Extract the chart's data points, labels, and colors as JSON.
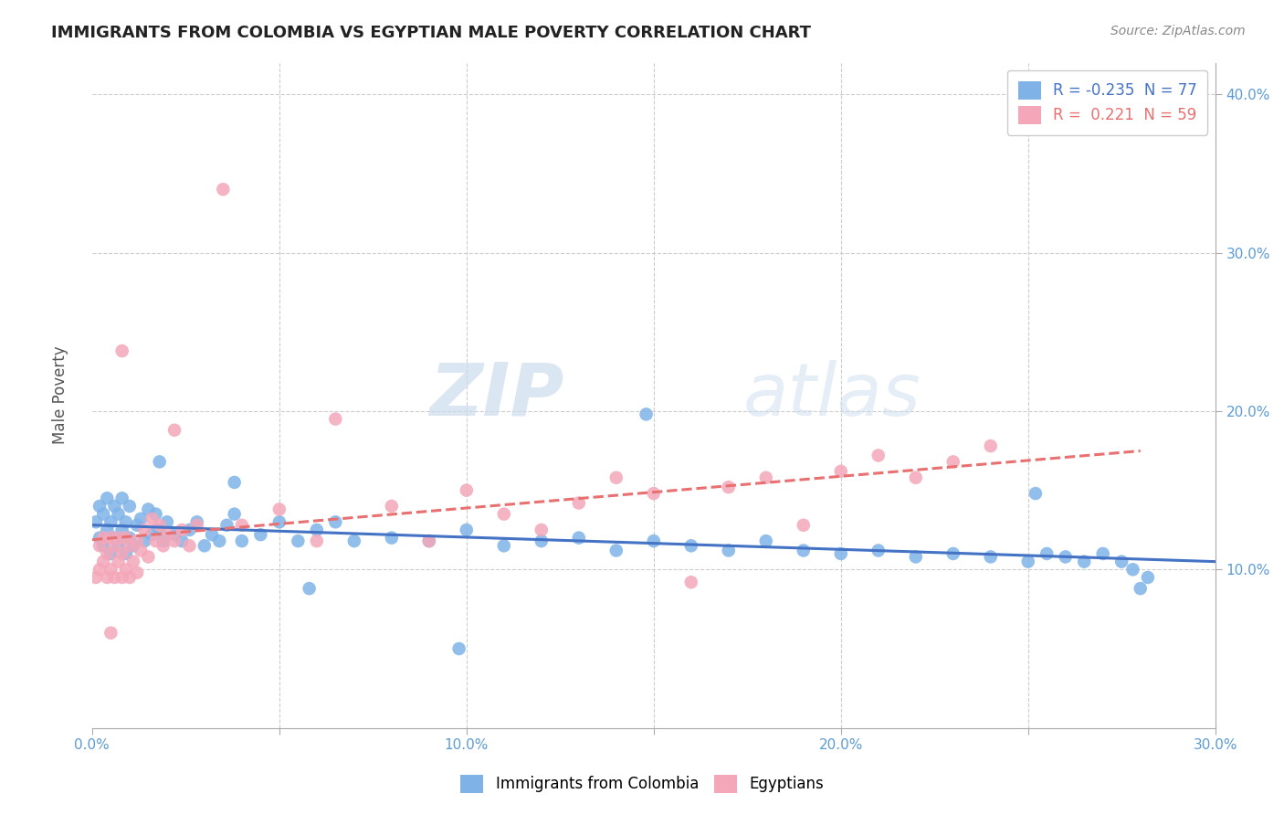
{
  "title": "IMMIGRANTS FROM COLOMBIA VS EGYPTIAN MALE POVERTY CORRELATION CHART",
  "source": "Source: ZipAtlas.com",
  "ylabel": "Male Poverty",
  "xlim": [
    0.0,
    0.3
  ],
  "ylim": [
    0.0,
    0.42
  ],
  "blue_R": -0.235,
  "blue_N": 77,
  "pink_R": 0.221,
  "pink_N": 59,
  "blue_color": "#7fb3e8",
  "pink_color": "#f4a7b9",
  "blue_line_color": "#4472c4",
  "pink_line_color": "#e87070",
  "watermark_zip": "ZIP",
  "watermark_atlas": "atlas",
  "legend_label_blue": "Immigrants from Colombia",
  "legend_label_pink": "Egyptians",
  "blue_x": [
    0.001,
    0.002,
    0.002,
    0.003,
    0.003,
    0.004,
    0.004,
    0.005,
    0.005,
    0.006,
    0.006,
    0.007,
    0.007,
    0.008,
    0.008,
    0.009,
    0.009,
    0.01,
    0.01,
    0.011,
    0.012,
    0.013,
    0.014,
    0.015,
    0.016,
    0.017,
    0.018,
    0.019,
    0.02,
    0.022,
    0.024,
    0.026,
    0.028,
    0.03,
    0.032,
    0.034,
    0.036,
    0.038,
    0.04,
    0.045,
    0.05,
    0.055,
    0.06,
    0.065,
    0.07,
    0.08,
    0.09,
    0.1,
    0.11,
    0.12,
    0.13,
    0.14,
    0.15,
    0.16,
    0.17,
    0.18,
    0.19,
    0.2,
    0.21,
    0.22,
    0.23,
    0.24,
    0.25,
    0.255,
    0.26,
    0.265,
    0.27,
    0.275,
    0.278,
    0.28,
    0.282,
    0.252,
    0.148,
    0.098,
    0.058,
    0.038,
    0.018
  ],
  "blue_y": [
    0.13,
    0.12,
    0.14,
    0.115,
    0.135,
    0.125,
    0.145,
    0.11,
    0.13,
    0.12,
    0.14,
    0.115,
    0.135,
    0.125,
    0.145,
    0.11,
    0.13,
    0.12,
    0.14,
    0.115,
    0.128,
    0.132,
    0.118,
    0.138,
    0.122,
    0.135,
    0.125,
    0.118,
    0.13,
    0.122,
    0.118,
    0.125,
    0.13,
    0.115,
    0.122,
    0.118,
    0.128,
    0.135,
    0.118,
    0.122,
    0.13,
    0.118,
    0.125,
    0.13,
    0.118,
    0.12,
    0.118,
    0.125,
    0.115,
    0.118,
    0.12,
    0.112,
    0.118,
    0.115,
    0.112,
    0.118,
    0.112,
    0.11,
    0.112,
    0.108,
    0.11,
    0.108,
    0.105,
    0.11,
    0.108,
    0.105,
    0.11,
    0.105,
    0.1,
    0.088,
    0.095,
    0.148,
    0.198,
    0.05,
    0.088,
    0.155,
    0.168
  ],
  "pink_x": [
    0.001,
    0.002,
    0.002,
    0.003,
    0.003,
    0.004,
    0.004,
    0.005,
    0.005,
    0.006,
    0.006,
    0.007,
    0.007,
    0.008,
    0.008,
    0.009,
    0.009,
    0.01,
    0.01,
    0.011,
    0.012,
    0.013,
    0.014,
    0.015,
    0.016,
    0.017,
    0.018,
    0.019,
    0.02,
    0.022,
    0.024,
    0.026,
    0.028,
    0.035,
    0.04,
    0.05,
    0.06,
    0.065,
    0.08,
    0.09,
    0.1,
    0.11,
    0.12,
    0.13,
    0.14,
    0.15,
    0.16,
    0.17,
    0.18,
    0.19,
    0.2,
    0.21,
    0.22,
    0.23,
    0.24,
    0.008,
    0.022,
    0.012,
    0.005
  ],
  "pink_y": [
    0.095,
    0.1,
    0.115,
    0.105,
    0.12,
    0.095,
    0.11,
    0.1,
    0.12,
    0.095,
    0.115,
    0.105,
    0.12,
    0.095,
    0.11,
    0.1,
    0.12,
    0.095,
    0.115,
    0.105,
    0.118,
    0.112,
    0.125,
    0.108,
    0.132,
    0.118,
    0.128,
    0.115,
    0.122,
    0.118,
    0.125,
    0.115,
    0.128,
    0.34,
    0.128,
    0.138,
    0.118,
    0.195,
    0.14,
    0.118,
    0.15,
    0.135,
    0.125,
    0.142,
    0.158,
    0.148,
    0.092,
    0.152,
    0.158,
    0.128,
    0.162,
    0.172,
    0.158,
    0.168,
    0.178,
    0.238,
    0.188,
    0.098,
    0.06
  ]
}
